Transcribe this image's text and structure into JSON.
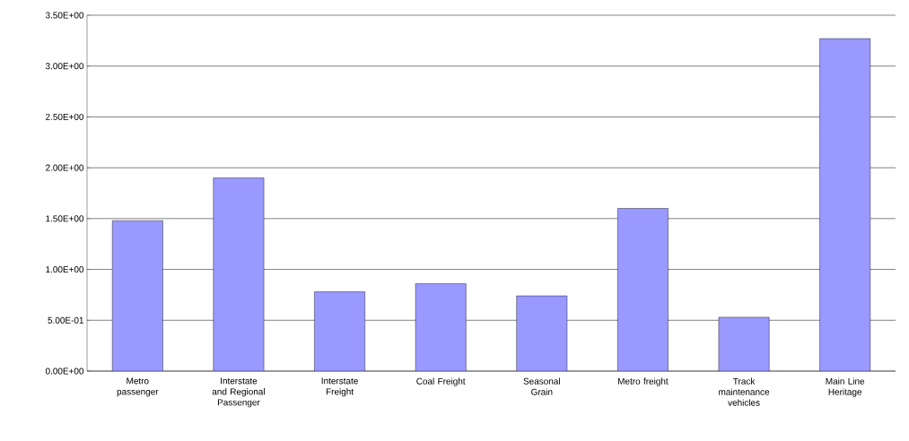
{
  "chart_data": {
    "type": "bar",
    "categories": [
      "Metro passenger",
      "Interstate and Regional Passenger",
      "Interstate Freight",
      "Coal Freight",
      "Seasonal Grain",
      "Metro freight",
      "Track maintenance vehicles",
      "Main Line Heritage"
    ],
    "values": [
      1.48,
      1.9,
      0.78,
      0.86,
      0.74,
      1.6,
      0.53,
      3.27
    ],
    "color": "#9999ff",
    "ylim": [
      0,
      3.5
    ],
    "yticks": [
      {
        "value": 0,
        "label": "0.00E+00"
      },
      {
        "value": 0.5,
        "label": "5.00E-01"
      },
      {
        "value": 1,
        "label": "1.00E+00"
      },
      {
        "value": 1.5,
        "label": "1.50E+00"
      },
      {
        "value": 2,
        "label": "2.00E+00"
      },
      {
        "value": 2.5,
        "label": "2.50E+00"
      },
      {
        "value": 3,
        "label": "3.00E+00"
      },
      {
        "value": 3.5,
        "label": "3.50E+00"
      }
    ],
    "grid": "y"
  }
}
